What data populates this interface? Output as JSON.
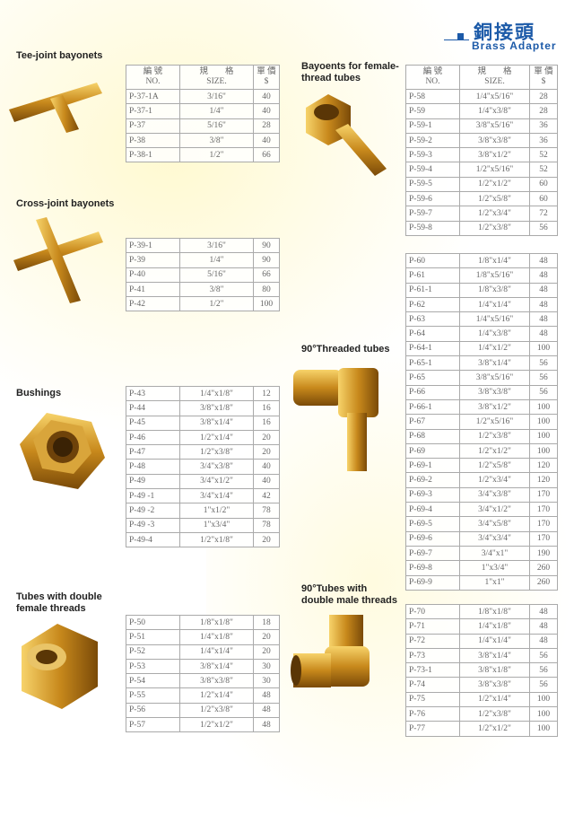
{
  "header": {
    "title_zh": "銅接頭",
    "title_en": "Brass Adapter",
    "accent": "#1c5aa8"
  },
  "table_header": {
    "no_zh": "編 號",
    "no_en": "NO.",
    "size_zh": "規　　格",
    "size_en": "SIZE.",
    "price_zh": "單 價",
    "price_en": "$"
  },
  "sections": [
    {
      "label": "Tee-joint bayonets",
      "icon": "tee-fitting",
      "rows": [
        [
          "P-37-1A",
          "3/16\"",
          "40"
        ],
        [
          "P-37-1",
          "1/4\"",
          "40"
        ],
        [
          "P-37",
          "5/16\"",
          "28"
        ],
        [
          "P-38",
          "3/8\"",
          "40"
        ],
        [
          "P-38-1",
          "1/2\"",
          "66"
        ]
      ]
    },
    {
      "label": "Cross-joint bayonets",
      "icon": "cross-fitting",
      "rows": [
        [
          "P-39-1",
          "3/16\"",
          "90"
        ],
        [
          "P-39",
          "1/4\"",
          "90"
        ],
        [
          "P-40",
          "5/16\"",
          "66"
        ],
        [
          "P-41",
          "3/8\"",
          "80"
        ],
        [
          "P-42",
          "1/2\"",
          "100"
        ]
      ]
    },
    {
      "label": "Bushings",
      "icon": "hex-bushing",
      "rows": [
        [
          "P-43",
          "1/4\"x1/8\"",
          "12"
        ],
        [
          "P-44",
          "3/8\"x1/8\"",
          "16"
        ],
        [
          "P-45",
          "3/8\"x1/4\"",
          "16"
        ],
        [
          "P-46",
          "1/2\"x1/4\"",
          "20"
        ],
        [
          "P-47",
          "1/2\"x3/8\"",
          "20"
        ],
        [
          "P-48",
          "3/4\"x3/8\"",
          "40"
        ],
        [
          "P-49",
          "3/4\"x1/2\"",
          "40"
        ],
        [
          "P-49 -1",
          "3/4\"x1/4\"",
          "42"
        ],
        [
          "P-49 -2",
          "1\"x1/2\"",
          "78"
        ],
        [
          "P-49 -3",
          "1\"x3/4\"",
          "78"
        ],
        [
          "P-49-4",
          "1/2\"x1/8\"",
          "20"
        ]
      ]
    },
    {
      "label": "Tubes with double female threads",
      "icon": "hex-coupling",
      "rows": [
        [
          "P-50",
          "1/8\"x1/8\"",
          "18"
        ],
        [
          "P-51",
          "1/4\"x1/8\"",
          "20"
        ],
        [
          "P-52",
          "1/4\"x1/4\"",
          "20"
        ],
        [
          "P-53",
          "3/8\"x1/4\"",
          "30"
        ],
        [
          "P-54",
          "3/8\"x3/8\"",
          "30"
        ],
        [
          "P-55",
          "1/2\"x1/4\"",
          "48"
        ],
        [
          "P-56",
          "1/2\"x3/8\"",
          "48"
        ],
        [
          "P-57",
          "1/2\"x1/2\"",
          "48"
        ]
      ]
    },
    {
      "label": "Bayoents for female-thread tubes",
      "icon": "hose-barb-female",
      "rows": [
        [
          "P-58",
          "1/4\"x5/16\"",
          "28"
        ],
        [
          "P-59",
          "1/4\"x3/8\"",
          "28"
        ],
        [
          "P-59-1",
          "3/8\"x5/16\"",
          "36"
        ],
        [
          "P-59-2",
          "3/8\"x3/8\"",
          "36"
        ],
        [
          "P-59-3",
          "3/8\"x1/2\"",
          "52"
        ],
        [
          "P-59-4",
          "1/2\"x5/16\"",
          "52"
        ],
        [
          "P-59-5",
          "1/2\"x1/2\"",
          "60"
        ],
        [
          "P-59-6",
          "1/2\"x5/8\"",
          "60"
        ],
        [
          "P-59-7",
          "1/2\"x3/4\"",
          "72"
        ],
        [
          "P-59-8",
          "1/2\"x3/8\"",
          "56"
        ]
      ]
    },
    {
      "label": "90°Threaded tubes",
      "icon": "elbow-barb",
      "rows": [
        [
          "P-60",
          "1/8\"x1/4\"",
          "48"
        ],
        [
          "P-61",
          "1/8\"x5/16\"",
          "48"
        ],
        [
          "P-61-1",
          "1/8\"x3/8\"",
          "48"
        ],
        [
          "P-62",
          "1/4\"x1/4\"",
          "48"
        ],
        [
          "P-63",
          "1/4\"x5/16\"",
          "48"
        ],
        [
          "P-64",
          "1/4\"x3/8\"",
          "48"
        ],
        [
          "P-64-1",
          "1/4\"x1/2\"",
          "100"
        ],
        [
          "P-65-1",
          "3/8\"x1/4\"",
          "56"
        ],
        [
          "P-65",
          "3/8\"x5/16\"",
          "56"
        ],
        [
          "P-66",
          "3/8\"x3/8\"",
          "56"
        ],
        [
          "P-66-1",
          "3/8\"x1/2\"",
          "100"
        ],
        [
          "P-67",
          "1/2\"x5/16\"",
          "100"
        ],
        [
          "P-68",
          "1/2\"x3/8\"",
          "100"
        ],
        [
          "P-69",
          "1/2\"x1/2\"",
          "100"
        ],
        [
          "P-69-1",
          "1/2\"x5/8\"",
          "120"
        ],
        [
          "P-69-2",
          "1/2\"x3/4\"",
          "120"
        ],
        [
          "P-69-3",
          "3/4\"x3/8\"",
          "170"
        ],
        [
          "P-69-4",
          "3/4\"x1/2\"",
          "170"
        ],
        [
          "P-69-5",
          "3/4\"x5/8\"",
          "170"
        ],
        [
          "P-69-6",
          "3/4\"x3/4\"",
          "170"
        ],
        [
          "P-69-7",
          "3/4\"x1\"",
          "190"
        ],
        [
          "P-69-8",
          "1\"x3/4\"",
          "260"
        ],
        [
          "P-69-9",
          "1\"x1\"",
          "260"
        ]
      ]
    },
    {
      "label": "90°Tubes with double male threads",
      "icon": "elbow-male",
      "rows": [
        [
          "P-70",
          "1/8\"x1/8\"",
          "48"
        ],
        [
          "P-71",
          "1/4\"x1/8\"",
          "48"
        ],
        [
          "P-72",
          "1/4\"x1/4\"",
          "48"
        ],
        [
          "P-73",
          "3/8\"x1/4\"",
          "56"
        ],
        [
          "P-73-1",
          "3/8\"x1/8\"",
          "56"
        ],
        [
          "P-74",
          "3/8\"x3/8\"",
          "56"
        ],
        [
          "P-75",
          "1/2\"x1/4\"",
          "100"
        ],
        [
          "P-76",
          "1/2\"x3/8\"",
          "100"
        ],
        [
          "P-77",
          "1/2\"x1/2\"",
          "100"
        ]
      ]
    }
  ]
}
